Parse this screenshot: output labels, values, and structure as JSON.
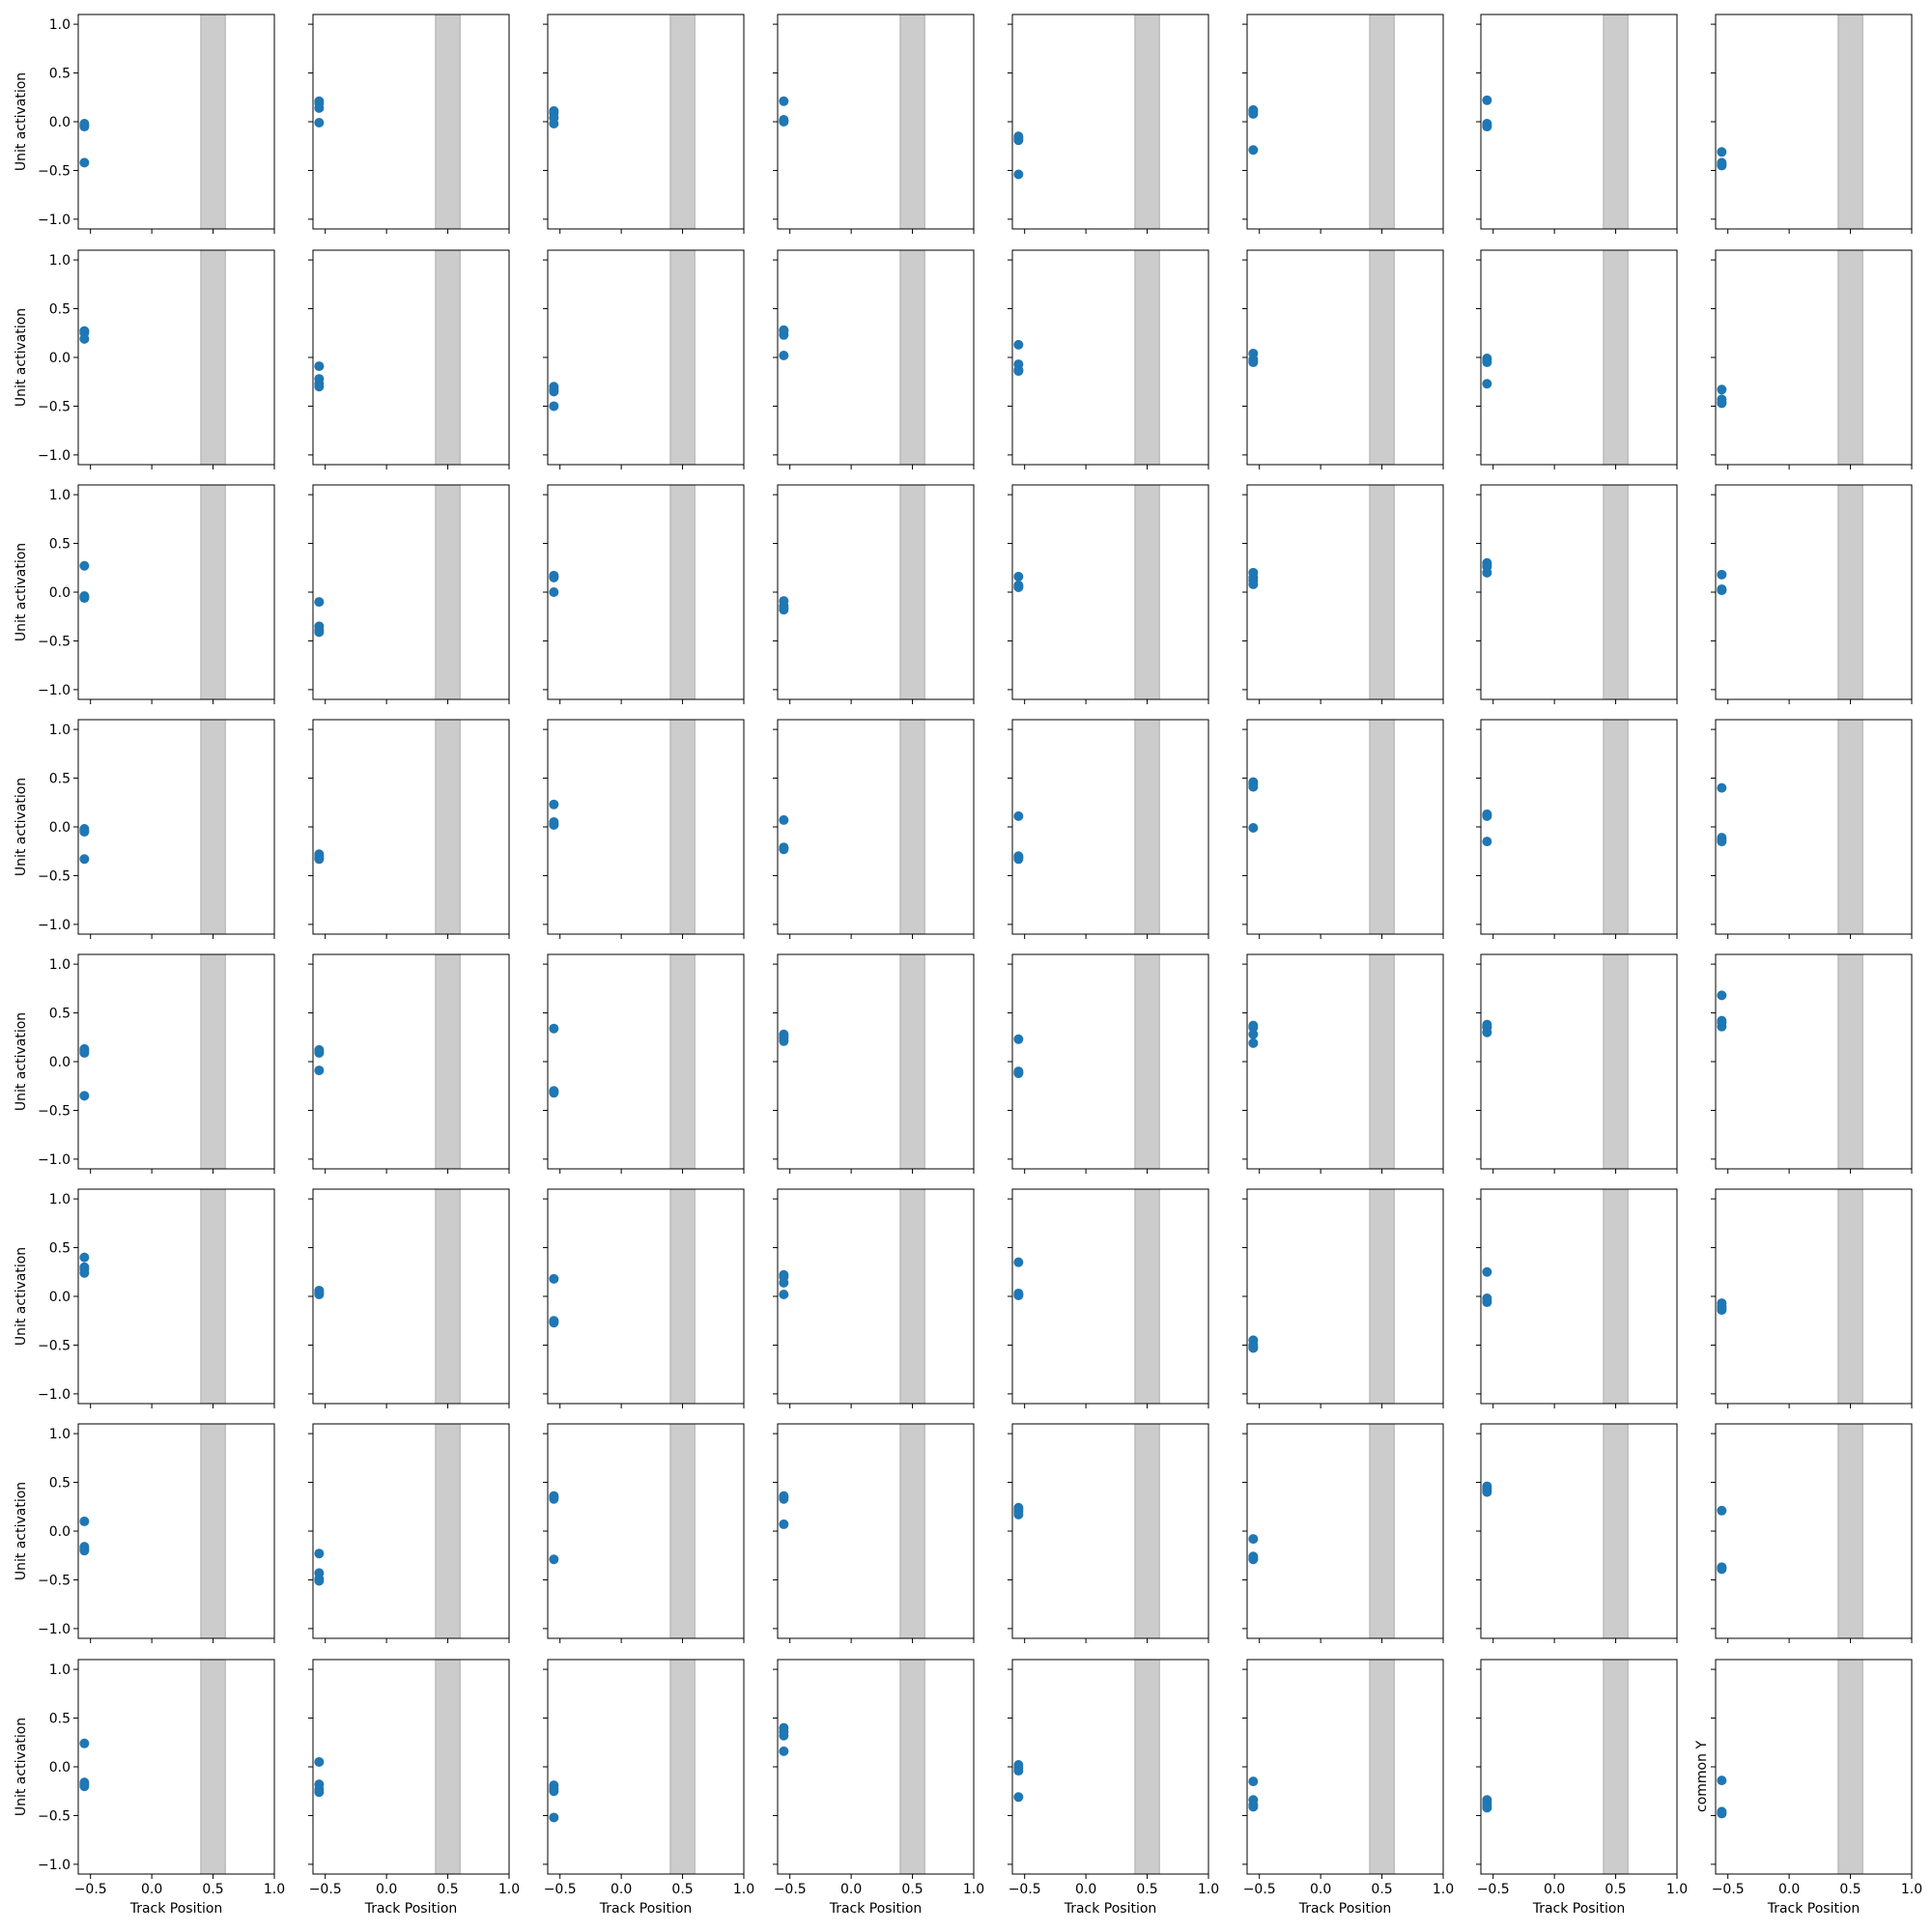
{
  "chart_data": {
    "type": "scatter",
    "layout": {
      "rows": 8,
      "cols": 8
    },
    "xlim": [
      -0.6,
      1.0
    ],
    "ylim": [
      -1.1,
      1.1
    ],
    "xticks": [
      -0.5,
      0.0,
      0.5,
      1.0
    ],
    "xtick_labels": [
      "−0.5",
      "0.0",
      "0.5",
      "1.0"
    ],
    "yticks": [
      1.0,
      0.5,
      0.0,
      -0.5,
      -1.0
    ],
    "ytick_labels": [
      "1.0",
      "0.5",
      "0.0",
      "−0.5",
      "−1.0"
    ],
    "xlabel": "Track Position",
    "ylabel": "Unit activation",
    "last_panel_ylabel": "common Y",
    "shaded_region": {
      "x_start": 0.4,
      "x_end": 0.6,
      "color": "#cccccc",
      "edge": "#aaaaaa"
    },
    "marker_color": "#1f77b4",
    "point_x": -0.55,
    "grid": false,
    "panels": [
      [
        [
          -0.02,
          -0.04,
          -0.05,
          -0.42
        ],
        [
          0.21,
          0.19,
          0.14,
          -0.01
        ],
        [
          0.11,
          0.09,
          0.04,
          -0.02
        ],
        [
          0.21,
          0.02,
          0.01,
          0.0
        ],
        [
          -0.15,
          -0.17,
          -0.19,
          -0.54
        ],
        [
          0.12,
          0.1,
          0.08,
          -0.29
        ],
        [
          0.22,
          -0.02,
          -0.04,
          -0.05
        ],
        [
          -0.31,
          -0.42,
          -0.44,
          -0.45
        ]
      ],
      [
        [
          0.27,
          0.25,
          0.19,
          0.27
        ],
        [
          -0.09,
          -0.22,
          -0.27,
          -0.3
        ],
        [
          -0.3,
          -0.33,
          -0.35,
          -0.5
        ],
        [
          0.28,
          0.27,
          0.23,
          0.02
        ],
        [
          0.13,
          -0.07,
          -0.13,
          -0.14
        ],
        [
          0.04,
          -0.02,
          -0.04,
          -0.05
        ],
        [
          -0.01,
          -0.03,
          -0.05,
          -0.27
        ],
        [
          -0.33,
          -0.43,
          -0.46,
          -0.47
        ]
      ],
      [
        [
          0.27,
          -0.04,
          -0.05,
          -0.06
        ],
        [
          -0.1,
          -0.35,
          -0.39,
          -0.41
        ],
        [
          0.17,
          0.16,
          0.15,
          0.0
        ],
        [
          -0.09,
          -0.14,
          -0.16,
          -0.18
        ],
        [
          0.16,
          0.07,
          0.06,
          0.05
        ],
        [
          0.2,
          0.15,
          0.12,
          0.08
        ],
        [
          0.3,
          0.28,
          0.26,
          0.2
        ],
        [
          0.18,
          0.03,
          0.02,
          0.02
        ]
      ],
      [
        [
          -0.02,
          -0.04,
          -0.05,
          -0.33
        ],
        [
          -0.28,
          -0.3,
          -0.32,
          -0.33
        ],
        [
          0.23,
          0.05,
          0.03,
          0.02
        ],
        [
          0.07,
          -0.21,
          -0.22,
          -0.23
        ],
        [
          0.11,
          -0.3,
          -0.31,
          -0.33
        ],
        [
          0.46,
          0.44,
          0.41,
          -0.01
        ],
        [
          0.13,
          0.12,
          0.11,
          -0.15
        ],
        [
          0.4,
          -0.11,
          -0.13,
          -0.15
        ]
      ],
      [
        [
          0.13,
          0.11,
          0.09,
          -0.35
        ],
        [
          0.12,
          0.1,
          0.09,
          -0.09
        ],
        [
          0.34,
          -0.3,
          -0.31,
          -0.32
        ],
        [
          0.28,
          0.26,
          0.24,
          0.21
        ],
        [
          0.23,
          -0.1,
          -0.11,
          -0.12
        ],
        [
          0.37,
          0.35,
          0.28,
          0.19
        ],
        [
          0.38,
          0.36,
          0.35,
          0.3
        ],
        [
          0.68,
          0.42,
          0.4,
          0.36
        ]
      ],
      [
        [
          0.4,
          0.3,
          0.28,
          0.24
        ],
        [
          0.06,
          0.04,
          0.03,
          0.02
        ],
        [
          0.18,
          -0.25,
          -0.26,
          -0.27
        ],
        [
          0.22,
          0.2,
          0.14,
          0.02
        ],
        [
          0.35,
          0.03,
          0.02,
          0.01
        ],
        [
          -0.45,
          -0.5,
          -0.52,
          -0.53
        ],
        [
          0.25,
          -0.02,
          -0.04,
          -0.06
        ],
        [
          -0.07,
          -0.1,
          -0.12,
          -0.14
        ]
      ],
      [
        [
          0.1,
          -0.16,
          -0.18,
          -0.2
        ],
        [
          -0.23,
          -0.43,
          -0.49,
          -0.51
        ],
        [
          0.36,
          0.35,
          0.33,
          -0.29
        ],
        [
          0.36,
          0.35,
          0.33,
          0.07
        ],
        [
          0.24,
          0.22,
          0.2,
          0.17
        ],
        [
          -0.08,
          -0.26,
          -0.28,
          -0.29
        ],
        [
          0.46,
          0.44,
          0.42,
          0.4
        ],
        [
          0.21,
          -0.37,
          -0.38,
          -0.39
        ]
      ],
      [
        [
          0.24,
          -0.16,
          -0.18,
          -0.2
        ],
        [
          0.05,
          -0.18,
          -0.23,
          -0.26
        ],
        [
          -0.19,
          -0.22,
          -0.25,
          -0.52
        ],
        [
          0.4,
          0.36,
          0.32,
          0.16
        ],
        [
          0.02,
          -0.01,
          -0.04,
          -0.31
        ],
        [
          -0.15,
          -0.34,
          -0.39,
          -0.41
        ],
        [
          -0.34,
          -0.37,
          -0.4,
          -0.42
        ],
        [
          -0.14,
          -0.46,
          -0.47,
          -0.48
        ]
      ]
    ]
  }
}
